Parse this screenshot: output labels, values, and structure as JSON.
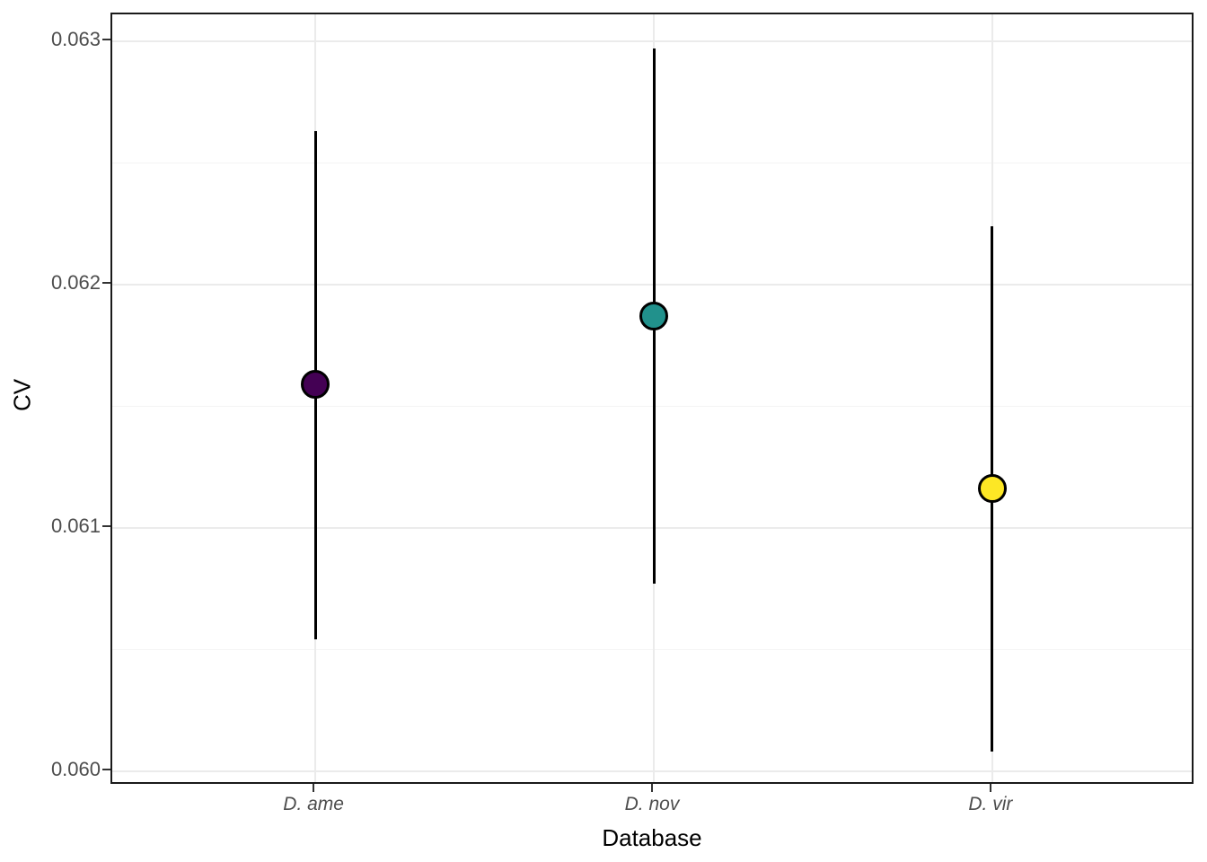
{
  "figure": {
    "background_color": "#ffffff",
    "panel": {
      "background_color": "#ffffff",
      "border_color": "#1a1a1a",
      "grid_major_color": "#ebebeb",
      "grid_minor_color": "#f4f4f4"
    },
    "y_axis": {
      "title": "CV",
      "tick_labels": [
        "0.060",
        "0.061",
        "0.062",
        "0.063"
      ],
      "tick_values": [
        0.06,
        0.061,
        0.062,
        0.063
      ],
      "minor_tick_values": [
        0.0605,
        0.0615,
        0.0625
      ]
    },
    "x_axis": {
      "title": "Database",
      "tick_labels": [
        "D. ame",
        "D. nov",
        "D. vir"
      ]
    }
  },
  "chart_data": {
    "type": "pointrange",
    "title": "",
    "xlabel": "Database",
    "ylabel": "CV",
    "categories": [
      "D. ame",
      "D. nov",
      "D. vir"
    ],
    "series": [
      {
        "name": "D. ame",
        "value": 0.06159,
        "ymin": 0.06054,
        "ymax": 0.06263,
        "color": "#440154"
      },
      {
        "name": "D. nov",
        "value": 0.06187,
        "ymin": 0.06077,
        "ymax": 0.06297,
        "color": "#21918C"
      },
      {
        "name": "D. vir",
        "value": 0.06116,
        "ymin": 0.06008,
        "ymax": 0.06224,
        "color": "#FDE725"
      }
    ],
    "ylim": [
      0.05994,
      0.06311
    ],
    "yticks": [
      0.06,
      0.061,
      0.062,
      0.063
    ],
    "grid": true,
    "legend_position": "none",
    "palette": "viridis",
    "errorbar_color": "#000000"
  }
}
